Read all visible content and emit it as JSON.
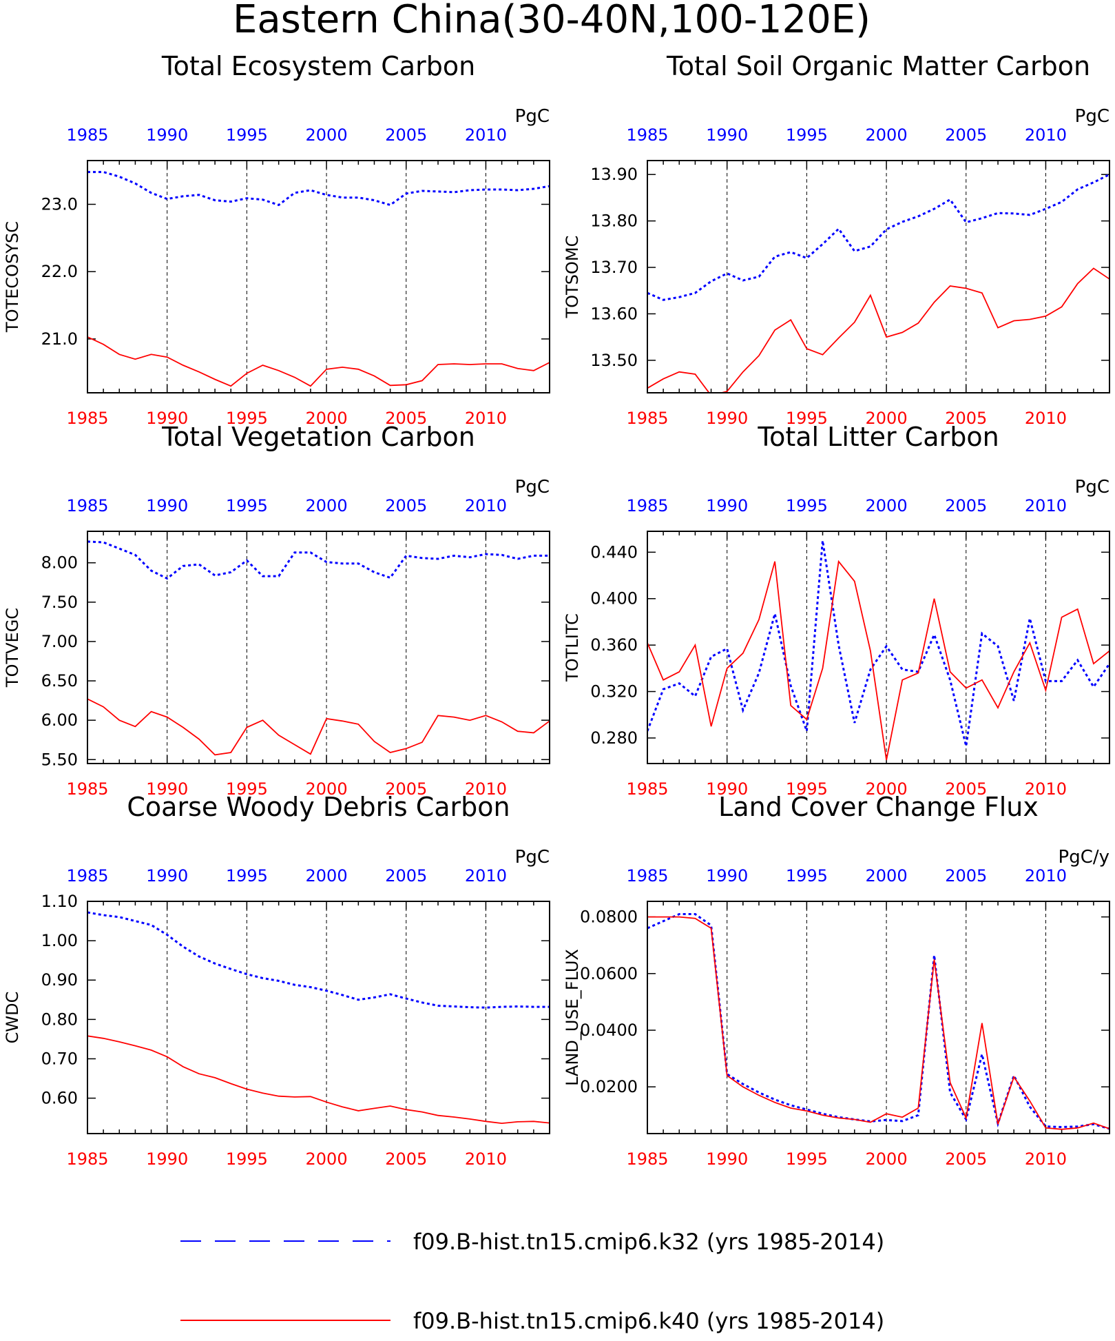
{
  "page": {
    "title": "Eastern China(30-40N,100-120E)",
    "legend": [
      {
        "label": "f09.B-hist.tn15.cmip6.k32 (yrs 1985-2014)",
        "color": "#0000ff",
        "style": "dashed"
      },
      {
        "label": "f09.B-hist.tn15.cmip6.k40 (yrs 1985-2014)",
        "color": "#ff0000",
        "style": "solid"
      }
    ]
  },
  "colors": {
    "k32": "#0000ff",
    "k40": "#ff0000",
    "axis": "#000000"
  },
  "chart_data": [
    {
      "type": "line",
      "title": "Total Ecosystem Carbon",
      "units": "PgC",
      "ylabel": "TOTECOSYSC",
      "xlim": [
        1985,
        2014
      ],
      "ylim": [
        20.2,
        23.65
      ],
      "yticks": [
        21.0,
        22.0,
        23.0
      ],
      "ytick_labels": [
        "21.0",
        "22.0",
        "23.0"
      ],
      "xticks": [
        1985,
        1990,
        1995,
        2000,
        2005,
        2010
      ],
      "x": [
        1985,
        1986,
        1987,
        1988,
        1989,
        1990,
        1991,
        1992,
        1993,
        1994,
        1995,
        1996,
        1997,
        1998,
        1999,
        2000,
        2001,
        2002,
        2003,
        2004,
        2005,
        2006,
        2007,
        2008,
        2009,
        2010,
        2011,
        2012,
        2013,
        2014
      ],
      "series": [
        {
          "values": [
            23.48,
            23.48,
            23.41,
            23.31,
            23.17,
            23.08,
            23.12,
            23.14,
            23.06,
            23.04,
            23.09,
            23.07,
            22.99,
            23.17,
            23.21,
            23.14,
            23.1,
            23.1,
            23.06,
            22.99,
            23.16,
            23.2,
            23.19,
            23.18,
            23.21,
            23.22,
            23.22,
            23.21,
            23.23,
            23.27
          ]
        },
        {
          "values": [
            21.03,
            20.92,
            20.77,
            20.7,
            20.77,
            20.73,
            20.61,
            20.51,
            20.4,
            20.3,
            20.49,
            20.61,
            20.53,
            20.43,
            20.3,
            20.55,
            20.58,
            20.55,
            20.45,
            20.31,
            20.32,
            20.38,
            20.62,
            20.63,
            20.62,
            20.63,
            20.63,
            20.56,
            20.53,
            20.65
          ]
        }
      ]
    },
    {
      "type": "line",
      "title": "Total Soil Organic Matter Carbon",
      "units": "PgC",
      "ylabel": "TOTSOMC",
      "xlim": [
        1985,
        2014
      ],
      "ylim": [
        13.43,
        13.93
      ],
      "yticks": [
        13.5,
        13.6,
        13.7,
        13.8,
        13.9
      ],
      "ytick_labels": [
        "13.50",
        "13.60",
        "13.70",
        "13.80",
        "13.90"
      ],
      "xticks": [
        1985,
        1990,
        1995,
        2000,
        2005,
        2010
      ],
      "x": [
        1985,
        1986,
        1987,
        1988,
        1989,
        1990,
        1991,
        1992,
        1993,
        1994,
        1995,
        1996,
        1997,
        1998,
        1999,
        2000,
        2001,
        2002,
        2003,
        2004,
        2005,
        2006,
        2007,
        2008,
        2009,
        2010,
        2011,
        2012,
        2013,
        2014
      ],
      "series": [
        {
          "values": [
            13.645,
            13.63,
            13.636,
            13.645,
            13.67,
            13.687,
            13.672,
            13.68,
            13.723,
            13.733,
            13.72,
            13.75,
            13.783,
            13.735,
            13.745,
            13.782,
            13.798,
            13.81,
            13.826,
            13.846,
            13.797,
            13.806,
            13.817,
            13.816,
            13.813,
            13.826,
            13.841,
            13.868,
            13.883,
            13.9
          ]
        },
        {
          "values": [
            13.44,
            13.46,
            13.475,
            13.47,
            13.424,
            13.433,
            13.475,
            13.51,
            13.565,
            13.587,
            13.525,
            13.512,
            13.548,
            13.582,
            13.64,
            13.55,
            13.56,
            13.58,
            13.625,
            13.66,
            13.655,
            13.645,
            13.57,
            13.585,
            13.588,
            13.595,
            13.615,
            13.665,
            13.698,
            13.675
          ]
        }
      ]
    },
    {
      "type": "line",
      "title": "Total Vegetation Carbon",
      "units": "PgC",
      "ylabel": "TOTVEGC",
      "xlim": [
        1985,
        2014
      ],
      "ylim": [
        5.45,
        8.4
      ],
      "yticks": [
        5.5,
        6.0,
        6.5,
        7.0,
        7.5,
        8.0
      ],
      "ytick_labels": [
        "5.50",
        "6.00",
        "6.50",
        "7.00",
        "7.50",
        "8.00"
      ],
      "xticks": [
        1985,
        1990,
        1995,
        2000,
        2005,
        2010
      ],
      "x": [
        1985,
        1986,
        1987,
        1988,
        1989,
        1990,
        1991,
        1992,
        1993,
        1994,
        1995,
        1996,
        1997,
        1998,
        1999,
        2000,
        2001,
        2002,
        2003,
        2004,
        2005,
        2006,
        2007,
        2008,
        2009,
        2010,
        2011,
        2012,
        2013,
        2014
      ],
      "series": [
        {
          "values": [
            8.27,
            8.26,
            8.18,
            8.1,
            7.9,
            7.8,
            7.96,
            7.98,
            7.84,
            7.88,
            8.03,
            7.83,
            7.83,
            8.13,
            8.13,
            8.01,
            7.99,
            7.99,
            7.88,
            7.81,
            8.09,
            8.06,
            8.05,
            8.09,
            8.07,
            8.11,
            8.1,
            8.05,
            8.09,
            8.09
          ]
        },
        {
          "values": [
            6.27,
            6.17,
            6.0,
            5.92,
            6.11,
            6.04,
            5.91,
            5.76,
            5.56,
            5.59,
            5.91,
            6.0,
            5.81,
            5.69,
            5.57,
            6.02,
            5.99,
            5.95,
            5.73,
            5.59,
            5.64,
            5.72,
            6.06,
            6.04,
            6.0,
            6.06,
            5.98,
            5.86,
            5.84,
            5.99
          ]
        }
      ]
    },
    {
      "type": "line",
      "title": "Total Litter Carbon",
      "units": "PgC",
      "ylabel": "TOTLITC",
      "xlim": [
        1985,
        2014
      ],
      "ylim": [
        0.258,
        0.458
      ],
      "yticks": [
        0.28,
        0.32,
        0.36,
        0.4,
        0.44
      ],
      "ytick_labels": [
        "0.280",
        "0.320",
        "0.360",
        "0.400",
        "0.440"
      ],
      "xticks": [
        1985,
        1990,
        1995,
        2000,
        2005,
        2010
      ],
      "x": [
        1985,
        1986,
        1987,
        1988,
        1989,
        1990,
        1991,
        1992,
        1993,
        1994,
        1995,
        1996,
        1997,
        1998,
        1999,
        2000,
        2001,
        2002,
        2003,
        2004,
        2005,
        2006,
        2007,
        2008,
        2009,
        2010,
        2011,
        2012,
        2013,
        2014
      ],
      "series": [
        {
          "values": [
            0.286,
            0.322,
            0.327,
            0.316,
            0.35,
            0.357,
            0.304,
            0.336,
            0.387,
            0.325,
            0.286,
            0.45,
            0.36,
            0.293,
            0.339,
            0.359,
            0.339,
            0.337,
            0.369,
            0.33,
            0.273,
            0.37,
            0.359,
            0.312,
            0.383,
            0.329,
            0.329,
            0.347,
            0.324,
            0.344
          ]
        },
        {
          "values": [
            0.362,
            0.33,
            0.337,
            0.36,
            0.29,
            0.34,
            0.353,
            0.382,
            0.432,
            0.308,
            0.296,
            0.34,
            0.432,
            0.415,
            0.355,
            0.261,
            0.33,
            0.336,
            0.4,
            0.337,
            0.323,
            0.33,
            0.306,
            0.337,
            0.362,
            0.321,
            0.384,
            0.391,
            0.344,
            0.355
          ]
        }
      ]
    },
    {
      "type": "line",
      "title": "Coarse Woody Debris Carbon",
      "units": "PgC",
      "ylabel": "CWDC",
      "xlim": [
        1985,
        2014
      ],
      "ylim": [
        0.51,
        1.1
      ],
      "yticks": [
        0.6,
        0.7,
        0.8,
        0.9,
        1.0,
        1.1
      ],
      "ytick_labels": [
        "0.60",
        "0.70",
        "0.80",
        "0.90",
        "1.00",
        "1.10"
      ],
      "xticks": [
        1985,
        1990,
        1995,
        2000,
        2005,
        2010
      ],
      "x": [
        1985,
        1986,
        1987,
        1988,
        1989,
        1990,
        1991,
        1992,
        1993,
        1994,
        1995,
        1996,
        1997,
        1998,
        1999,
        2000,
        2001,
        2002,
        2003,
        2004,
        2005,
        2006,
        2007,
        2008,
        2009,
        2010,
        2011,
        2012,
        2013,
        2014
      ],
      "series": [
        {
          "values": [
            1.072,
            1.065,
            1.06,
            1.05,
            1.04,
            1.015,
            0.985,
            0.96,
            0.942,
            0.928,
            0.915,
            0.905,
            0.898,
            0.888,
            0.882,
            0.873,
            0.862,
            0.85,
            0.856,
            0.864,
            0.853,
            0.843,
            0.835,
            0.833,
            0.831,
            0.83,
            0.832,
            0.833,
            0.832,
            0.832
          ]
        },
        {
          "values": [
            0.758,
            0.752,
            0.743,
            0.733,
            0.722,
            0.705,
            0.68,
            0.662,
            0.652,
            0.637,
            0.623,
            0.613,
            0.605,
            0.603,
            0.604,
            0.59,
            0.578,
            0.568,
            0.574,
            0.58,
            0.571,
            0.565,
            0.556,
            0.552,
            0.547,
            0.541,
            0.536,
            0.54,
            0.541,
            0.537
          ]
        }
      ]
    },
    {
      "type": "line",
      "title": "Land Cover Change Flux",
      "units": "PgC/y",
      "ylabel": "LAND_USE_FLUX",
      "xlim": [
        1985,
        2014
      ],
      "ylim": [
        0.0035,
        0.0855
      ],
      "yticks": [
        0.02,
        0.04,
        0.06,
        0.08
      ],
      "ytick_labels": [
        "0.0200",
        "0.0400",
        "0.0600",
        "0.0800"
      ],
      "xticks": [
        1985,
        1990,
        1995,
        2000,
        2005,
        2010
      ],
      "x": [
        1985,
        1986,
        1987,
        1988,
        1989,
        1990,
        1991,
        1992,
        1993,
        1994,
        1995,
        1996,
        1997,
        1998,
        1999,
        2000,
        2001,
        2002,
        2003,
        2004,
        2005,
        2006,
        2007,
        2008,
        2009,
        2010,
        2011,
        2012,
        2013,
        2014
      ],
      "series": [
        {
          "values": [
            0.076,
            0.0785,
            0.081,
            0.081,
            0.077,
            0.0245,
            0.021,
            0.018,
            0.0155,
            0.0135,
            0.012,
            0.0105,
            0.0093,
            0.0085,
            0.0078,
            0.0083,
            0.0079,
            0.01,
            0.0665,
            0.018,
            0.0085,
            0.0315,
            0.007,
            0.024,
            0.013,
            0.006,
            0.0058,
            0.006,
            0.0068,
            0.0052
          ]
        },
        {
          "values": [
            0.08,
            0.08,
            0.08,
            0.0795,
            0.076,
            0.024,
            0.02,
            0.017,
            0.0145,
            0.0125,
            0.0115,
            0.01,
            0.009,
            0.0085,
            0.0075,
            0.0105,
            0.0093,
            0.0125,
            0.065,
            0.0215,
            0.009,
            0.0425,
            0.0068,
            0.0235,
            0.015,
            0.0055,
            0.005,
            0.0055,
            0.0072,
            0.0052
          ]
        }
      ]
    }
  ]
}
